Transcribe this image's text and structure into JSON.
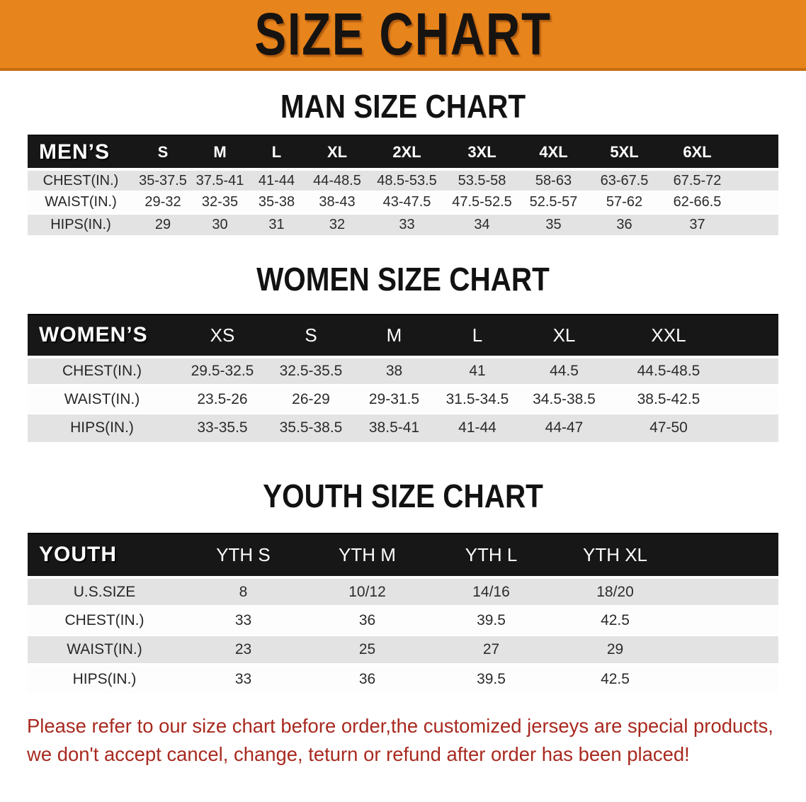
{
  "banner": {
    "title": "SIZE CHART"
  },
  "colors": {
    "banner_orange": "#E8841C",
    "header_black": "#171717",
    "row_gray": "#e3e3e3",
    "disclaimer_red": "#A8291F"
  },
  "men": {
    "heading": "MAN SIZE CHART",
    "table": {
      "columns": [
        "MEN’S",
        "S",
        "M",
        "L",
        "XL",
        "2XL",
        "3XL",
        "4XL",
        "5XL",
        "6XL"
      ],
      "rows": [
        {
          "label": "CHEST(IN.)",
          "values": [
            "35-37.5",
            "37.5-41",
            "41-44",
            "44-48.5",
            "48.5-53.5",
            "53.5-58",
            "58-63",
            "63-67.5",
            "67.5-72"
          ]
        },
        {
          "label": "WAIST(IN.)",
          "values": [
            "29-32",
            "32-35",
            "35-38",
            "38-43",
            "43-47.5",
            "47.5-52.5",
            "52.5-57",
            "57-62",
            "62-66.5"
          ]
        },
        {
          "label": "HIPS(IN.)",
          "values": [
            "29",
            "30",
            "31",
            "32",
            "33",
            "34",
            "35",
            "36",
            "37"
          ]
        }
      ]
    }
  },
  "women": {
    "heading": "WOMEN SIZE CHART",
    "table": {
      "columns": [
        "WOMEN’S",
        "XS",
        "S",
        "M",
        "L",
        "XL",
        "XXL"
      ],
      "rows": [
        {
          "label": "CHEST(IN.)",
          "values": [
            "29.5-32.5",
            "32.5-35.5",
            "38",
            "41",
            "44.5",
            "44.5-48.5"
          ]
        },
        {
          "label": "WAIST(IN.)",
          "values": [
            "23.5-26",
            "26-29",
            "29-31.5",
            "31.5-34.5",
            "34.5-38.5",
            "38.5-42.5"
          ]
        },
        {
          "label": "HIPS(IN.)",
          "values": [
            "33-35.5",
            "35.5-38.5",
            "38.5-41",
            "41-44",
            "44-47",
            "47-50"
          ]
        }
      ]
    }
  },
  "youth": {
    "heading": "YOUTH SIZE CHART",
    "table": {
      "columns": [
        "YOUTH",
        "YTH S",
        "YTH M",
        "YTH L",
        "YTH XL"
      ],
      "rows": [
        {
          "label": "U.S.SIZE",
          "values": [
            "8",
            "10/12",
            "14/16",
            "18/20"
          ]
        },
        {
          "label": "CHEST(IN.)",
          "values": [
            "33",
            "36",
            "39.5",
            "42.5"
          ]
        },
        {
          "label": "WAIST(IN.)",
          "values": [
            "23",
            "25",
            "27",
            "29"
          ]
        },
        {
          "label": "HIPS(IN.)",
          "values": [
            "33",
            "36",
            "39.5",
            "42.5"
          ]
        }
      ]
    }
  },
  "disclaimer": {
    "line1": "Please refer to our size chart before order,the customized jerseys are special products,",
    "line2": "we don't accept cancel, change, teturn or refund after order has been placed!"
  }
}
